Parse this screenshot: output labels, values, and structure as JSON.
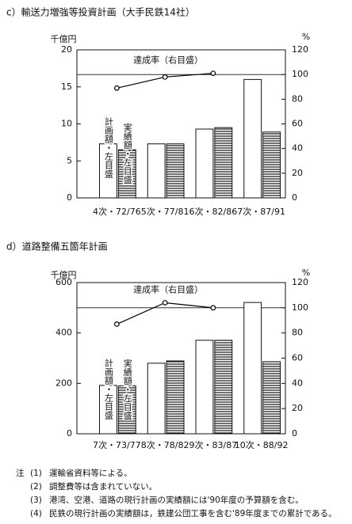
{
  "chart_data": [
    {
      "type": "bar",
      "title": "c）輸送力増強等投資計画（大手民鉄14社）",
      "y_unit": "千億円",
      "y2_unit": "%",
      "categories": [
        "4次・72/76",
        "5次・77/81",
        "6次・82/86",
        "7次・87/91"
      ],
      "ylim": [
        0,
        20
      ],
      "yticks": [
        0,
        5,
        10,
        15,
        20
      ],
      "y2lim": [
        0,
        120
      ],
      "y2ticks": [
        0,
        20,
        40,
        60,
        80,
        100,
        120
      ],
      "y2_reference": 100,
      "series": [
        {
          "name": "計画額・左目盛",
          "color": "#ffffff",
          "values": [
            7.3,
            7.3,
            9.3,
            16.0
          ]
        },
        {
          "name": "実績額・左目盛",
          "color": "#000000",
          "pattern": "horizontal-lines",
          "values": [
            6.5,
            7.3,
            9.5,
            8.9
          ]
        },
        {
          "name": "達成率（右目盛）",
          "type": "line",
          "axis": "y2",
          "color": "#000000",
          "values": [
            89,
            98,
            101,
            null
          ]
        }
      ]
    },
    {
      "type": "bar",
      "title": "d）道路整備五箇年計画",
      "y_unit": "千億円",
      "y2_unit": "%",
      "categories": [
        "7次・73/77",
        "8次・78/82",
        "9次・83/87",
        "10次・88/92"
      ],
      "ylim": [
        0,
        600
      ],
      "yticks": [
        0,
        200,
        400,
        600
      ],
      "y2lim": [
        0,
        120
      ],
      "y2ticks": [
        0,
        20,
        40,
        60,
        80,
        100,
        120
      ],
      "y2_reference": 100,
      "series": [
        {
          "name": "計画額・左目盛",
          "color": "#ffffff",
          "values": [
            192,
            280,
            371,
            521
          ]
        },
        {
          "name": "実績額・左目盛",
          "color": "#000000",
          "pattern": "horizontal-lines",
          "values": [
            190,
            289,
            371,
            286
          ]
        },
        {
          "name": "達成率（右目盛）",
          "type": "line",
          "axis": "y2",
          "color": "#000000",
          "values": [
            87,
            104,
            100,
            null
          ]
        }
      ]
    }
  ],
  "notes": {
    "label": "注",
    "items": [
      {
        "number": "(1)",
        "text": "運輸省資料等による。"
      },
      {
        "number": "(2)",
        "text": "調整費等は含まれていない。"
      },
      {
        "number": "(3)",
        "text": "港湾、空港、道路の現行計画の実績額には'90年度の予算額を含む。"
      },
      {
        "number": "(4)",
        "text": "民鉄の現行計画の実績額は，鉄建公団工事を含む'89年度までの累計である。"
      }
    ]
  }
}
